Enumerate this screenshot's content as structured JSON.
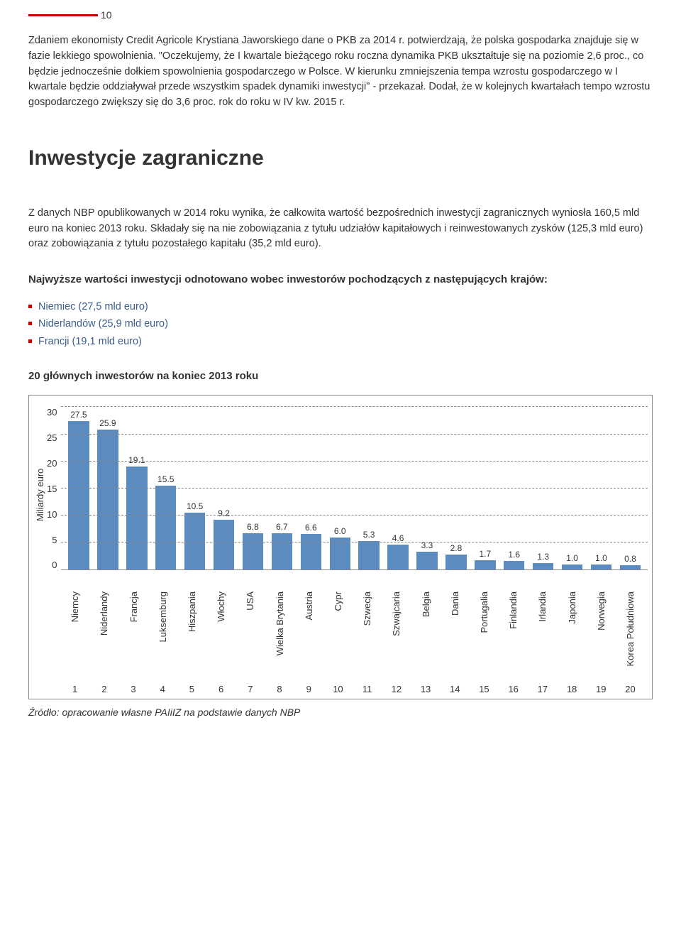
{
  "page_number": "10",
  "para1": "Zdaniem ekonomisty Credit Agricole Krystiana Jaworskiego dane o PKB za 2014 r. potwierdzają, że polska gospodarka znajduje się w fazie lekkiego spowolnienia. \"Oczekujemy, że I kwartale bieżącego roku roczna dynamika PKB ukształtuje się na poziomie 2,6 proc., co będzie jednocześnie dołkiem spowolnienia gospodarczego w Polsce. W kierunku zmniejszenia tempa wzrostu gospodarczego w I kwartale będzie oddziaływał przede wszystkim spadek dynamiki inwestycji\" - przekazał. Dodał, że w kolejnych kwartałach tempo wzrostu gospodarczego zwiększy się do 3,6 proc. rok do roku w IV kw. 2015 r.",
  "section_title": "Inwestycje zagraniczne",
  "para2": "Z danych NBP opublikowanych w 2014 roku wynika, że całkowita wartość bezpośrednich inwestycji zagranicznych wyniosła 160,5 mld euro na koniec 2013 roku. Składały się na nie zobowiązania z tytułu udziałów kapitałowych i reinwestowanych zysków (125,3 mld euro) oraz zobowiązania z tytułu pozostałego kapitału (35,2 mld euro).",
  "sub_heading": "Najwyższe wartości inwestycji odnotowano wobec inwestorów pochodzących z następujących krajów:",
  "bullets": [
    "Niemiec (27,5 mld euro)",
    "Niderlandów (25,9 mld euro)",
    "Francji (19,1 mld euro)"
  ],
  "chart": {
    "title": "20 głównych inwestorów na koniec 2013 roku",
    "ylabel": "Miliardy euro",
    "ylim": [
      0,
      30
    ],
    "ytick_step": 5,
    "yticks": [
      "30",
      "25",
      "20",
      "15",
      "10",
      "5",
      "0"
    ],
    "bar_color": "#5b8bbf",
    "grid_color": "#888888",
    "categories": [
      "Niemcy",
      "Niderlandy",
      "Francja",
      "Luksemburg",
      "Hiszpania",
      "Włochy",
      "USA",
      "Wielka Brytania",
      "Austria",
      "Cypr",
      "Szwecja",
      "Szwajcaria",
      "Belgia",
      "Dania",
      "Portugalia",
      "Finlandia",
      "Irlandia",
      "Japonia",
      "Norwegia",
      "Korea Południowa"
    ],
    "values": [
      27.5,
      25.9,
      19.1,
      15.5,
      10.5,
      9.2,
      6.8,
      6.7,
      6.6,
      6.0,
      5.3,
      4.6,
      3.3,
      2.8,
      1.7,
      1.6,
      1.3,
      1.0,
      1.0,
      0.8
    ],
    "value_labels": [
      "27.5",
      "25.9",
      "19.1",
      "15.5",
      "10.5",
      "9.2",
      "6.8",
      "6.7",
      "6.6",
      "6.0",
      "5.3",
      "4.6",
      "3.3",
      "2.8",
      "1.7",
      "1.6",
      "1.3",
      "1.0",
      "1.0",
      "0.8"
    ],
    "x_numbers": [
      "1",
      "2",
      "3",
      "4",
      "5",
      "6",
      "7",
      "8",
      "9",
      "10",
      "11",
      "12",
      "13",
      "14",
      "15",
      "16",
      "17",
      "18",
      "19",
      "20"
    ]
  },
  "source": "Źródło: opracowanie własne PAIiIZ na podstawie danych NBP"
}
